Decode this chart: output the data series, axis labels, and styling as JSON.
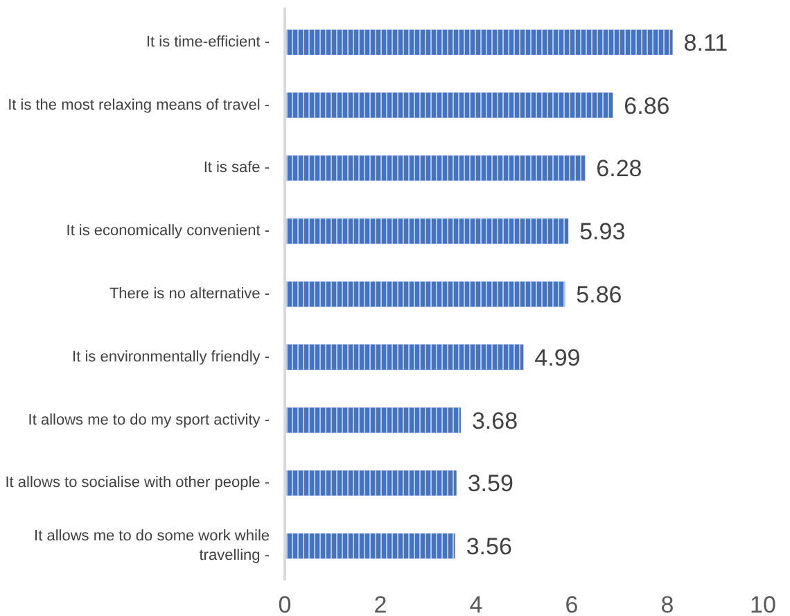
{
  "chart_data": {
    "type": "bar",
    "orientation": "horizontal",
    "categories": [
      "It is time-efficient -",
      "It is the most relaxing means of travel -",
      "It is safe -",
      "It is economically convenient -",
      "There is no alternative -",
      "It is environmentally friendly -",
      "It allows me to do my sport activity -",
      "It allows to socialise with other people -",
      "It allows me to do some work while travelling -"
    ],
    "values": [
      8.11,
      6.86,
      6.28,
      5.93,
      5.86,
      4.99,
      3.68,
      3.59,
      3.56
    ],
    "color": "#4472c4",
    "data_labels": true,
    "xlim": [
      0,
      10
    ],
    "xticks": [
      0,
      2,
      4,
      6,
      8,
      10
    ],
    "grid": false
  }
}
